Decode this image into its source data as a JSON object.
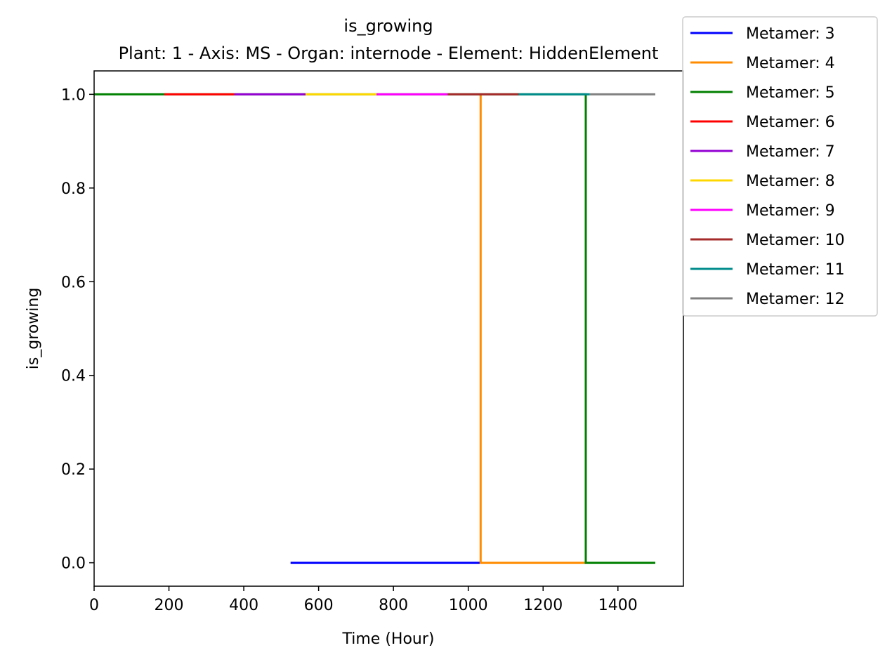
{
  "chart_data": {
    "type": "line",
    "title": "is_growing",
    "subtitle": "Plant: 1 - Axis: MS - Organ: internode - Element: HiddenElement",
    "xlabel": "Time (Hour)",
    "ylabel": "is_growing",
    "xlim": [
      0,
      1575
    ],
    "ylim": [
      -0.05,
      1.05
    ],
    "xticks": [
      0,
      200,
      400,
      600,
      800,
      1000,
      1200,
      1400
    ],
    "yticks": [
      0.0,
      0.2,
      0.4,
      0.6,
      0.8,
      1.0
    ],
    "xtick_labels": [
      "0",
      "200",
      "400",
      "600",
      "800",
      "1000",
      "1200",
      "1400"
    ],
    "ytick_labels": [
      "0.0",
      "0.2",
      "0.4",
      "0.6",
      "0.8",
      "1.0"
    ],
    "grid": false,
    "legend_position": "top-right, outside axes",
    "series": [
      {
        "name": "Metamer: 3",
        "color": "#0000ff",
        "x": [
          525,
          1031
        ],
        "y": [
          0,
          0
        ]
      },
      {
        "name": "Metamer: 4",
        "color": "#ff8c00",
        "x": [
          1031,
          1033,
          1033,
          1313
        ],
        "y": [
          1,
          1,
          0,
          0
        ]
      },
      {
        "name": "Metamer: 5",
        "color": "#008000",
        "x": [
          0,
          1313,
          1314,
          1314,
          1500
        ],
        "y": [
          1,
          1,
          1,
          0,
          0
        ]
      },
      {
        "name": "Metamer: 6",
        "color": "#ff0000",
        "x": [
          188,
          375
        ],
        "y": [
          1,
          1
        ]
      },
      {
        "name": "Metamer: 7",
        "color": "#9400d3",
        "x": [
          375,
          565
        ],
        "y": [
          1,
          1
        ]
      },
      {
        "name": "Metamer: 8",
        "color": "#ffd700",
        "x": [
          565,
          755
        ],
        "y": [
          1,
          1
        ]
      },
      {
        "name": "Metamer: 9",
        "color": "#ff00ff",
        "x": [
          755,
          945
        ],
        "y": [
          1,
          1
        ]
      },
      {
        "name": "Metamer: 10",
        "color": "#a52a2a",
        "x": [
          945,
          1135
        ],
        "y": [
          1,
          1
        ]
      },
      {
        "name": "Metamer: 11",
        "color": "#008b8b",
        "x": [
          1135,
          1325
        ],
        "y": [
          1,
          1
        ]
      },
      {
        "name": "Metamer: 12",
        "color": "#808080",
        "x": [
          1325,
          1500
        ],
        "y": [
          1,
          1
        ]
      }
    ]
  }
}
